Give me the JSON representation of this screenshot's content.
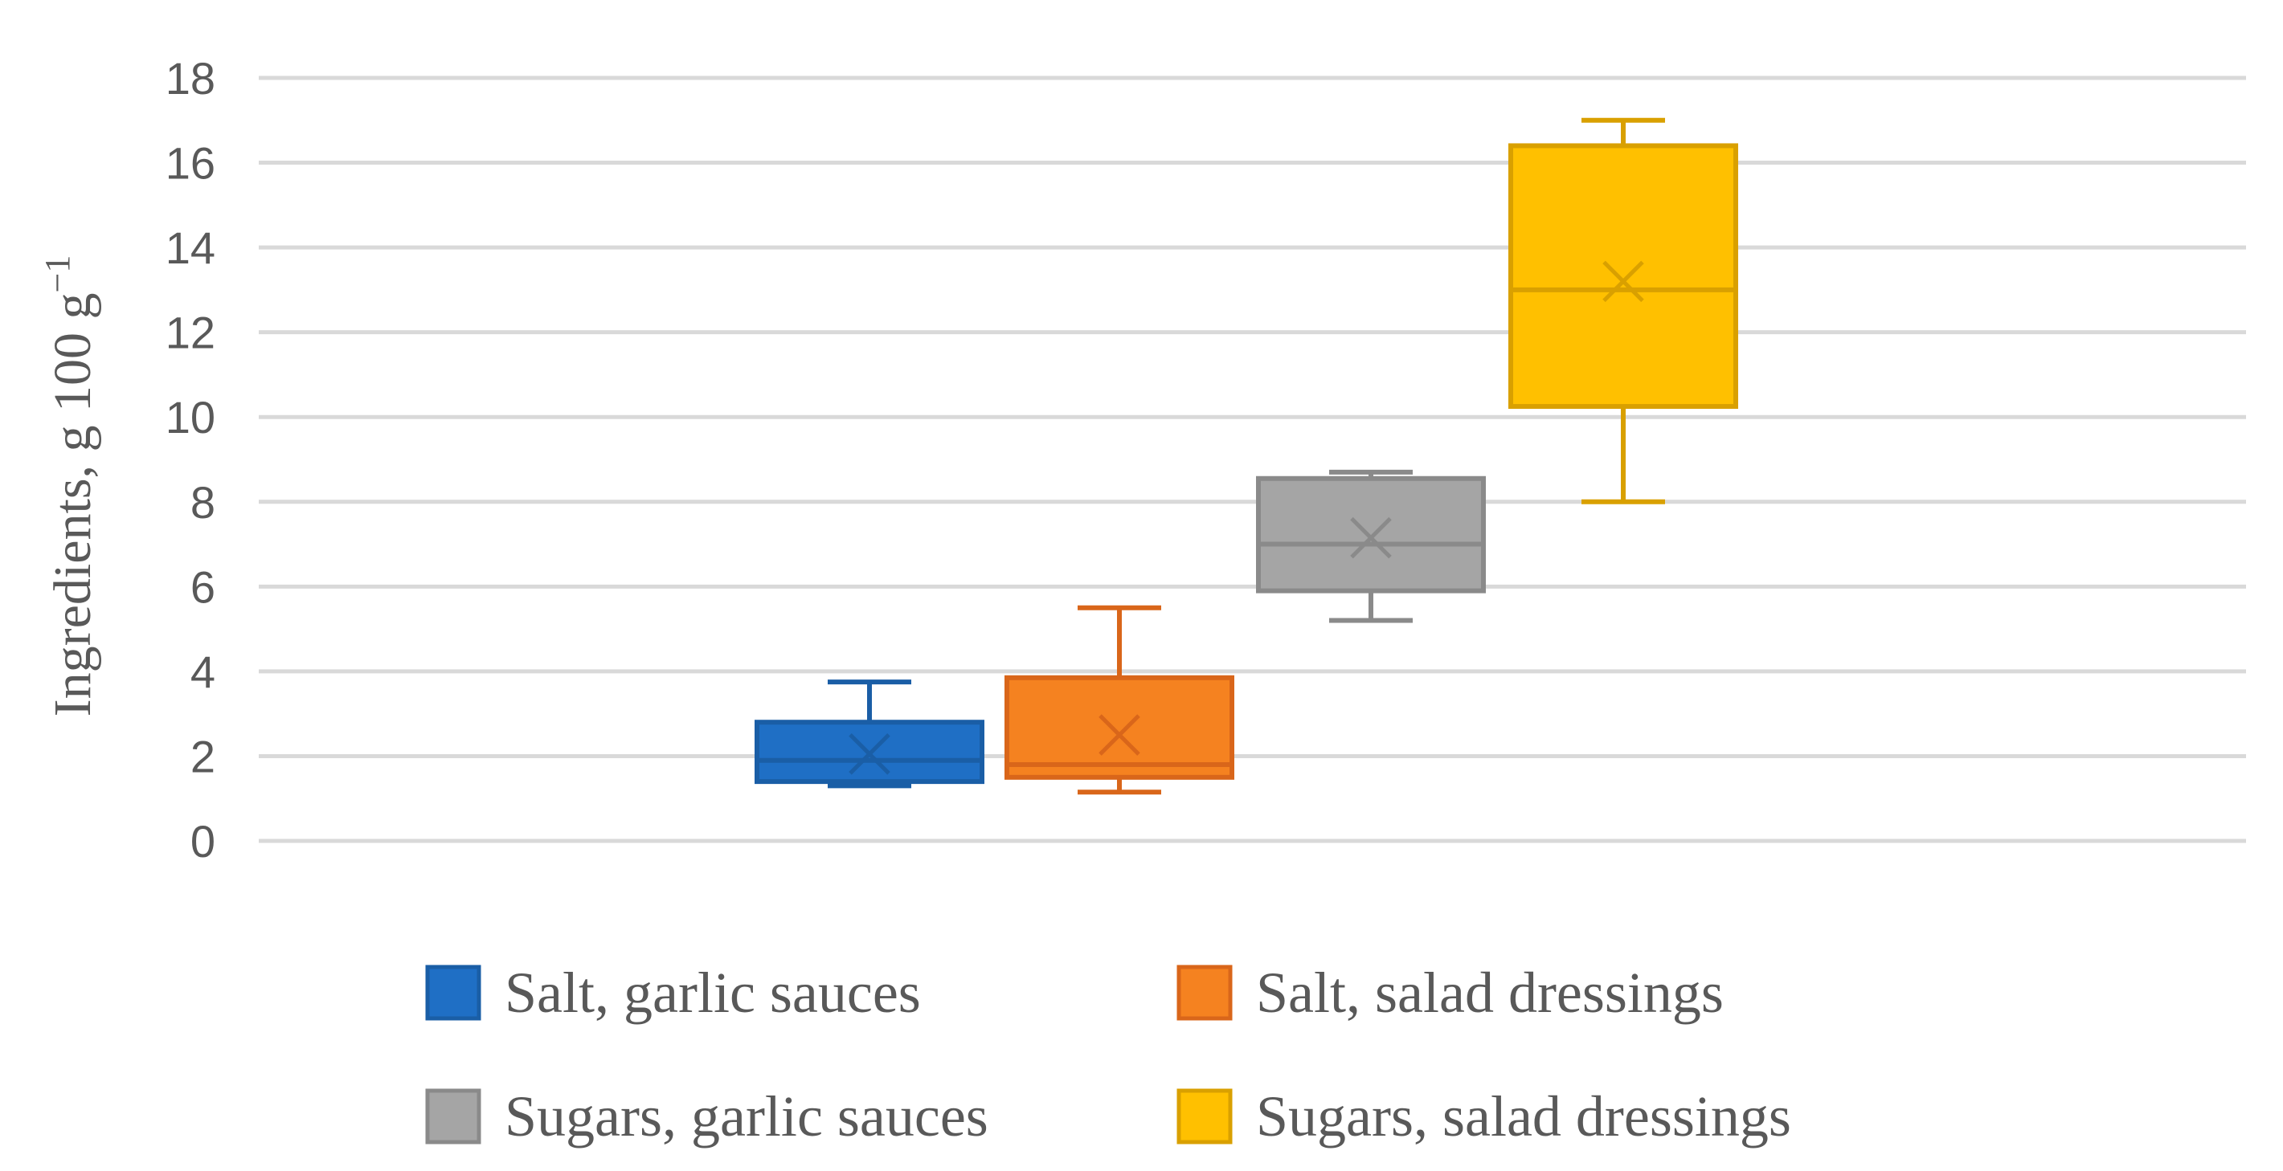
{
  "chart_data": {
    "type": "boxplot",
    "title": "",
    "xlabel": "",
    "ylabel": "Ingredients, g  100 g",
    "ylabel_superscript": "−1",
    "ylim": [
      0,
      18
    ],
    "y_ticks": [
      "0",
      "2",
      "4",
      "6",
      "8",
      "10",
      "12",
      "14",
      "16",
      "18"
    ],
    "grid": true,
    "legend_position": "bottom",
    "series": [
      {
        "name": "Salt, garlic sauces",
        "color": "#1f6fc5",
        "stroke": "#1a5ea6",
        "min": 1.3,
        "q1": 1.4,
        "median": 1.9,
        "q3": 2.8,
        "max": 3.75,
        "mean": 2.05
      },
      {
        "name": "Salt, salad dressings",
        "color": "#f58220",
        "stroke": "#d9661a",
        "min": 1.15,
        "q1": 1.5,
        "median": 1.8,
        "q3": 3.85,
        "max": 5.5,
        "mean": 2.5
      },
      {
        "name": "Sugars, garlic sauces",
        "color": "#a5a5a5",
        "stroke": "#8a8a8a",
        "min": 5.2,
        "q1": 5.9,
        "median": 7.0,
        "q3": 8.55,
        "max": 8.7,
        "mean": 7.15
      },
      {
        "name": "Sugars, salad dressings",
        "color": "#ffc000",
        "stroke": "#d9a000",
        "min": 8.0,
        "q1": 10.25,
        "median": 13.0,
        "q3": 16.4,
        "max": 17.0,
        "mean": 13.2
      }
    ]
  }
}
